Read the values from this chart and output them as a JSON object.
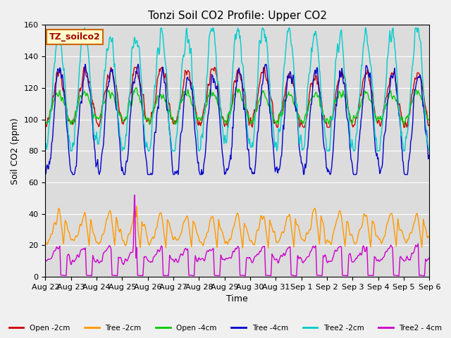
{
  "title": "Tonzi Soil CO2 Profile: Upper CO2",
  "ylabel": "Soil CO2 (ppm)",
  "xlabel": "Time",
  "legend_label": "TZ_soilco2",
  "series_names": [
    "Open -2cm",
    "Tree -2cm",
    "Open -4cm",
    "Tree -4cm",
    "Tree2 -2cm",
    "Tree2 - 4cm"
  ],
  "series_colors": [
    "#cc0000",
    "#ff9900",
    "#00cc00",
    "#0000cc",
    "#00cccc",
    "#cc00cc"
  ],
  "ylim": [
    0,
    160
  ],
  "yticks": [
    0,
    20,
    40,
    60,
    80,
    100,
    120,
    140,
    160
  ],
  "background_color": "#dcdcdc",
  "title_fontsize": 11,
  "axis_fontsize": 9,
  "tick_fontsize": 8
}
